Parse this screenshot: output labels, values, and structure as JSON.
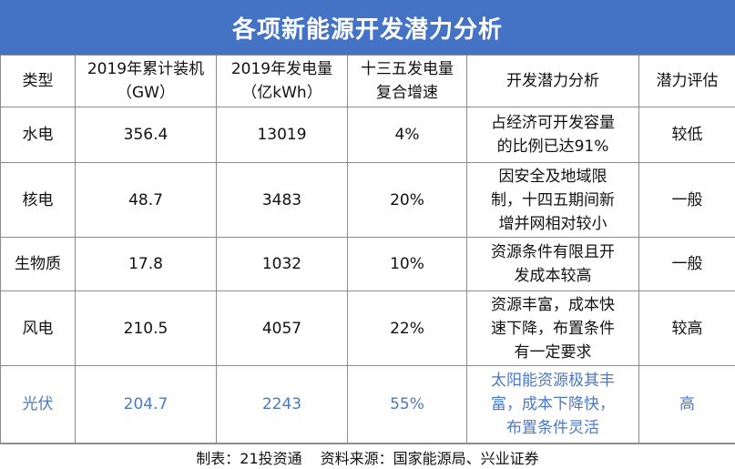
{
  "title": "各项新能源开发潜力分析",
  "headers": [
    {
      "lines": [
        "类型"
      ]
    },
    {
      "lines": [
        "2019年累计装机",
        "（GW）"
      ]
    },
    {
      "lines": [
        "2019年发电量",
        "（亿kWh）"
      ]
    },
    {
      "lines": [
        "十三五发电量",
        "复合增速"
      ]
    },
    {
      "lines": [
        "开发潜力分析"
      ]
    },
    {
      "lines": [
        "潜力评估"
      ]
    }
  ],
  "rows": [
    {
      "type": "水电",
      "capacity": "356.4",
      "generation": "13019",
      "growth": "4%",
      "analysis": [
        "占经济可开发容量",
        "的比例已达91%"
      ],
      "potential": "较低"
    },
    {
      "type": "核电",
      "capacity": "48.7",
      "generation": "3483",
      "growth": "20%",
      "analysis": [
        "因安全及地域限",
        "制，十四五期间新",
        "增并网相对较小"
      ],
      "potential": "一般"
    },
    {
      "type": "生物质",
      "capacity": "17.8",
      "generation": "1032",
      "growth": "10%",
      "analysis": [
        "资源条件有限且开",
        "发成本较高"
      ],
      "potential": "一般"
    },
    {
      "type": "风电",
      "capacity": "210.5",
      "generation": "4057",
      "growth": "22%",
      "analysis": [
        "资源丰富，成本快",
        "速下降，布置条件",
        "有一定要求"
      ],
      "potential": "较高"
    },
    {
      "type": "光伏",
      "capacity": "204.7",
      "generation": "2243",
      "growth": "55%",
      "analysis": [
        "太阳能资源极其丰",
        "富，成本下降快，",
        "布置条件灵活"
      ],
      "potential": "高"
    }
  ],
  "footer": {
    "maker": "制表：21投资通",
    "source": "资料来源：国家能源局、兴业证券"
  },
  "colors": {
    "title_bg": "#4472c4",
    "highlight_text": "#4a78c6",
    "border": "#8c8c8c"
  }
}
